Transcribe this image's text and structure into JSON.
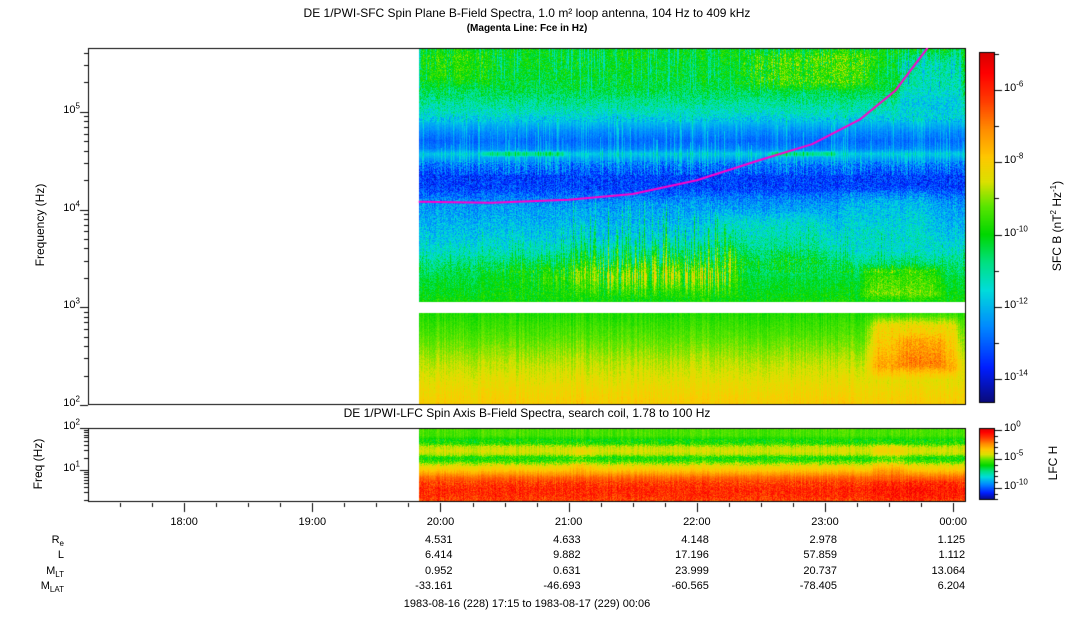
{
  "figure": {
    "caption": "1983-08-16 (228) 17:15 to 1983-08-17 (229) 00:06"
  },
  "xaxis": {
    "time_range_hours": [
      17.25,
      24.1
    ],
    "minor_tick_minutes": 15,
    "hour_tick_labels": [
      {
        "hour": 18,
        "label": "18:00"
      },
      {
        "hour": 19,
        "label": "19:00"
      },
      {
        "hour": 20,
        "label": "20:00"
      },
      {
        "hour": 21,
        "label": "21:00"
      },
      {
        "hour": 22,
        "label": "22:00"
      },
      {
        "hour": 23,
        "label": "23:00"
      },
      {
        "hour": 24,
        "label": "00:00"
      }
    ]
  },
  "ephemeris": {
    "column_hours": [
      20,
      21,
      22,
      23,
      24
    ],
    "rows": [
      {
        "label": "R",
        "sub": "e",
        "values": [
          "4.531",
          "4.633",
          "4.148",
          "2.978",
          "1.125"
        ]
      },
      {
        "label": "L",
        "sub": "",
        "values": [
          "6.414",
          "9.882",
          "17.196",
          "57.859",
          "1.112"
        ]
      },
      {
        "label": "M",
        "sub": "LT",
        "values": [
          "0.952",
          "0.631",
          "23.999",
          "20.737",
          "13.064"
        ]
      },
      {
        "label": "M",
        "sub": "LAT",
        "values": [
          "-33.161",
          "-46.693",
          "-60.565",
          "-78.405",
          "6.204"
        ]
      }
    ]
  },
  "colormap": {
    "stops": [
      [
        0.0,
        "#0a0a78"
      ],
      [
        0.1,
        "#001eff"
      ],
      [
        0.22,
        "#008cff"
      ],
      [
        0.32,
        "#00dcdc"
      ],
      [
        0.4,
        "#00e182"
      ],
      [
        0.48,
        "#00d700"
      ],
      [
        0.56,
        "#5ae600"
      ],
      [
        0.63,
        "#dce100"
      ],
      [
        0.7,
        "#ffc800"
      ],
      [
        0.78,
        "#ff8c00"
      ],
      [
        0.86,
        "#ff3c00"
      ],
      [
        0.94,
        "#ff0000"
      ],
      [
        1.0,
        "#d70000"
      ]
    ]
  },
  "chart_data": [
    {
      "type": "heatmap",
      "instrument": "SFC",
      "title": "DE 1/PWI-SFC  Spin Plane B-Field Spectra, 1.0 m² loop antenna, 104 Hz to 409 kHz",
      "subtitle": "(Magenta Line: Fce in Hz)",
      "ylabel": "Frequency (Hz)",
      "yticks_exp": [
        2,
        3,
        4,
        5
      ],
      "freq_log_range": [
        2.0,
        5.654
      ],
      "time_range_hours": [
        17.25,
        24.1
      ],
      "data_start_hour": 19.83,
      "white_gap_logf": [
        2.946,
        3.058
      ],
      "value_log_range": [
        -14.66,
        -4.95
      ],
      "colorbar": {
        "label_parts": [
          {
            "t": "SFC B (nT"
          },
          {
            "t": "2",
            "sup": true
          },
          {
            "t": " Hz"
          },
          {
            "t": "-1",
            "sup": true
          },
          {
            "t": ")"
          }
        ],
        "ticks_exp": [
          -6,
          -8,
          -10,
          -12,
          -14
        ],
        "minor_ticks_exp": [
          -5,
          -7,
          -9,
          -11,
          -13
        ]
      },
      "profile": [
        [
          2.0,
          -7.95
        ],
        [
          2.05,
          -8.05
        ],
        [
          2.2,
          -8.3
        ],
        [
          2.45,
          -8.75
        ],
        [
          2.7,
          -9.3
        ],
        [
          2.95,
          -9.75
        ],
        [
          3.06,
          -9.9
        ],
        [
          3.1,
          -10.0
        ],
        [
          3.3,
          -10.35
        ],
        [
          3.45,
          -10.85
        ],
        [
          3.55,
          -11.3
        ],
        [
          3.7,
          -11.75
        ],
        [
          3.9,
          -12.1
        ],
        [
          4.05,
          -12.35
        ],
        [
          4.12,
          -12.7
        ],
        [
          4.22,
          -13.3
        ],
        [
          4.35,
          -13.35
        ],
        [
          4.45,
          -12.9
        ],
        [
          4.52,
          -12.3
        ],
        [
          4.57,
          -11.8
        ],
        [
          4.62,
          -12.6
        ],
        [
          4.7,
          -12.9
        ],
        [
          4.8,
          -12.5
        ],
        [
          4.9,
          -11.9
        ],
        [
          5.0,
          -11.3
        ],
        [
          5.1,
          -10.9
        ],
        [
          5.25,
          -10.35
        ],
        [
          5.45,
          -10.15
        ],
        [
          5.654,
          -10.0
        ]
      ],
      "noise": {
        "col": 0.22,
        "pix": 0.18,
        "speckle_bands": [
          [
            3.35,
            4.1,
            0.45
          ],
          [
            4.1,
            4.5,
            0.5
          ],
          [
            4.9,
            5.654,
            0.45
          ],
          [
            3.06,
            3.35,
            0.25
          ]
        ]
      },
      "features": [
        {
          "type": "blob",
          "t": [
            22.3,
            23.45
          ],
          "f": [
            5.2,
            5.654
          ],
          "dv": 1.35,
          "speckle": 0.9
        },
        {
          "type": "blob",
          "t": [
            19.83,
            20.45
          ],
          "f": [
            5.25,
            5.654
          ],
          "dv": 0.6,
          "speckle": 0.5
        },
        {
          "type": "blob",
          "t": [
            23.55,
            24.1
          ],
          "f": [
            4.95,
            5.654
          ],
          "dv": -0.85
        },
        {
          "type": "blob",
          "t": [
            23.3,
            24.1
          ],
          "f": [
            2.25,
            2.95
          ],
          "dv": 1.55,
          "speckle": 0.4
        },
        {
          "type": "blob",
          "t": [
            23.55,
            23.95
          ],
          "f": [
            2.35,
            2.75
          ],
          "dv": 0.6,
          "speckle": 0.3
        },
        {
          "type": "blob",
          "t": [
            23.25,
            23.95
          ],
          "f": [
            3.058,
            3.45
          ],
          "dv": 1.15,
          "speckle": 0.5
        },
        {
          "type": "blob",
          "t": [
            22.05,
            23.1
          ],
          "f": [
            3.35,
            4.0
          ],
          "dv": 0.75,
          "speckle": 0.5
        },
        {
          "type": "blob",
          "t": [
            23.1,
            23.9
          ],
          "f": [
            3.6,
            4.25
          ],
          "dv": 0.55,
          "speckle": 0.5
        },
        {
          "type": "hline",
          "t": [
            20.3,
            21.0
          ],
          "f": [
            4.54,
            4.6
          ],
          "dv": 0.9
        },
        {
          "type": "hline",
          "t": [
            22.55,
            23.1
          ],
          "f": [
            4.54,
            4.6
          ],
          "dv": 0.9
        },
        {
          "type": "flames",
          "t": [
            20.25,
            22.42
          ],
          "fbase": 3.32,
          "fmax": 4.18,
          "dv": 2.6
        },
        {
          "type": "vdown",
          "t": [
            19.83,
            24.1
          ],
          "f": [
            5.15,
            5.654
          ],
          "density": 0.3,
          "dv": -1.1
        },
        {
          "type": "vup",
          "t": [
            19.83,
            24.1
          ],
          "f": [
            4.35,
            5.05
          ],
          "density": 0.35,
          "dv": 0.85
        },
        {
          "type": "vup",
          "t": [
            19.83,
            24.1
          ],
          "f": [
            3.35,
            3.9
          ],
          "density": 0.3,
          "dv": 0.6
        }
      ],
      "fce_line": {
        "color": "#ff00cc",
        "points_hour_logf": [
          [
            19.83,
            4.08
          ],
          [
            20.4,
            4.07
          ],
          [
            21.0,
            4.1
          ],
          [
            21.5,
            4.16
          ],
          [
            22.0,
            4.3
          ],
          [
            22.5,
            4.51
          ],
          [
            22.9,
            4.67
          ],
          [
            23.27,
            4.92
          ],
          [
            23.55,
            5.22
          ],
          [
            23.8,
            5.654
          ]
        ]
      }
    },
    {
      "type": "heatmap",
      "instrument": "LFC",
      "title": "DE 1/PWI-LFC  Spin Axis B-Field Spectra, search coil, 1.78 to 100 Hz",
      "ylabel": "Freq (Hz)",
      "yticks_exp": [
        1,
        2
      ],
      "freq_log_range": [
        0.25,
        2.0
      ],
      "time_range_hours": [
        17.25,
        24.1
      ],
      "data_start_hour": 19.83,
      "value_log_range": [
        -12.1,
        0.35
      ],
      "colorbar": {
        "label_parts": [
          {
            "t": "LFC H"
          }
        ],
        "ticks_exp": [
          0,
          -5,
          -10
        ],
        "minor_step": 1
      },
      "profile": [
        [
          0.25,
          -1.5
        ],
        [
          0.4,
          -1.15
        ],
        [
          0.55,
          -1.05
        ],
        [
          0.72,
          -1.45
        ],
        [
          0.84,
          -2.0
        ],
        [
          0.92,
          -2.7
        ],
        [
          1.02,
          -3.5
        ],
        [
          1.12,
          -4.1
        ],
        [
          1.22,
          -5.6
        ],
        [
          1.3,
          -5.9
        ],
        [
          1.37,
          -4.6
        ],
        [
          1.45,
          -4.2
        ],
        [
          1.56,
          -4.5
        ],
        [
          1.64,
          -5.8
        ],
        [
          1.72,
          -6.0
        ],
        [
          1.82,
          -5.35
        ],
        [
          2.0,
          -5.3
        ]
      ],
      "noise": {
        "col": 0.28,
        "pix": 0.2,
        "speckle_bands": [
          [
            1.55,
            1.75,
            0.5
          ],
          [
            1.1,
            1.35,
            0.5
          ],
          [
            0.25,
            0.75,
            0.45
          ]
        ]
      },
      "features": [
        {
          "type": "blob",
          "t": [
            23.35,
            23.65
          ],
          "f": [
            0.8,
            1.7
          ],
          "dv": 0.7,
          "speckle": 0.4
        },
        {
          "type": "blob",
          "t": [
            21.0,
            21.2
          ],
          "f": [
            0.9,
            1.6
          ],
          "dv": 0.4,
          "speckle": 0.3
        },
        {
          "type": "blob",
          "t": [
            23.3,
            24.1
          ],
          "f": [
            0.25,
            0.8
          ],
          "dv": 0.35,
          "speckle": 0.3
        }
      ]
    }
  ]
}
